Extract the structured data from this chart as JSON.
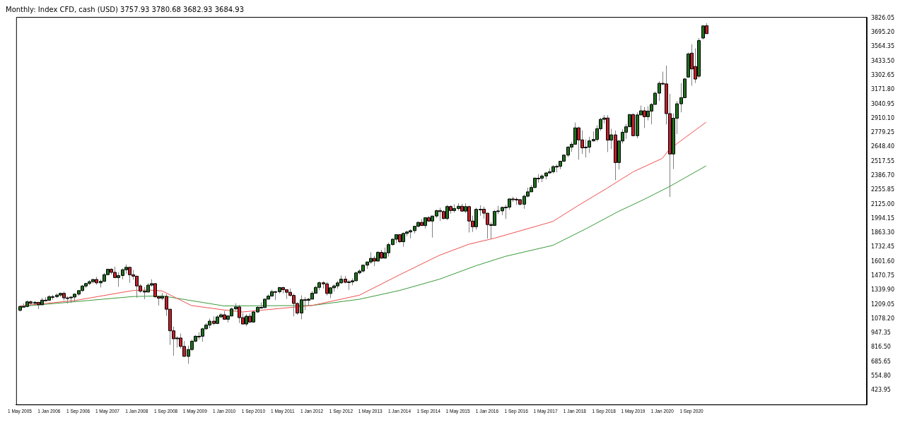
{
  "chart_data": {
    "type": "candlestick",
    "title": "Monthly: Index CFD, cash (USD) 3757.93 3780.68 3682.93 3684.93",
    "x": [
      "2005-05",
      "2005-06",
      "2005-07",
      "2005-08",
      "2005-09",
      "2005-10",
      "2005-11",
      "2005-12",
      "2006-01",
      "2006-02",
      "2006-03",
      "2006-04",
      "2006-05",
      "2006-06",
      "2006-07",
      "2006-08",
      "2006-09",
      "2006-10",
      "2006-11",
      "2006-12",
      "2007-01",
      "2007-02",
      "2007-03",
      "2007-04",
      "2007-05",
      "2007-06",
      "2007-07",
      "2007-08",
      "2007-09",
      "2007-10",
      "2007-11",
      "2007-12",
      "2008-01",
      "2008-02",
      "2008-03",
      "2008-04",
      "2008-05",
      "2008-06",
      "2008-07",
      "2008-08",
      "2008-09",
      "2008-10",
      "2008-11",
      "2008-12",
      "2009-01",
      "2009-02",
      "2009-03",
      "2009-04",
      "2009-05",
      "2009-06",
      "2009-07",
      "2009-08",
      "2009-09",
      "2009-10",
      "2009-11",
      "2009-12",
      "2010-01",
      "2010-02",
      "2010-03",
      "2010-04",
      "2010-05",
      "2010-06",
      "2010-07",
      "2010-08",
      "2010-09",
      "2010-10",
      "2010-11",
      "2010-12",
      "2011-01",
      "2011-02",
      "2011-03",
      "2011-04",
      "2011-05",
      "2011-06",
      "2011-07",
      "2011-08",
      "2011-09",
      "2011-10",
      "2011-11",
      "2011-12",
      "2012-01",
      "2012-02",
      "2012-03",
      "2012-04",
      "2012-05",
      "2012-06",
      "2012-07",
      "2012-08",
      "2012-09",
      "2012-10",
      "2012-11",
      "2012-12",
      "2013-01",
      "2013-02",
      "2013-03",
      "2013-04",
      "2013-05",
      "2013-06",
      "2013-07",
      "2013-08",
      "2013-09",
      "2013-10",
      "2013-11",
      "2013-12",
      "2014-01",
      "2014-02",
      "2014-03",
      "2014-04",
      "2014-05",
      "2014-06",
      "2014-07",
      "2014-08",
      "2014-09",
      "2014-10",
      "2014-11",
      "2014-12",
      "2015-01",
      "2015-02",
      "2015-03",
      "2015-04",
      "2015-05",
      "2015-06",
      "2015-07",
      "2015-08",
      "2015-09",
      "2015-10",
      "2015-11",
      "2015-12",
      "2016-01",
      "2016-02",
      "2016-03",
      "2016-04",
      "2016-05",
      "2016-06",
      "2016-07",
      "2016-08",
      "2016-09",
      "2016-10",
      "2016-11",
      "2016-12",
      "2017-01",
      "2017-02",
      "2017-03",
      "2017-04",
      "2017-05",
      "2017-06",
      "2017-07",
      "2017-08",
      "2017-09",
      "2017-10",
      "2017-11",
      "2017-12",
      "2018-01",
      "2018-02",
      "2018-03",
      "2018-04",
      "2018-05",
      "2018-06",
      "2018-07",
      "2018-08",
      "2018-09",
      "2018-10",
      "2018-11",
      "2018-12",
      "2019-01",
      "2019-02",
      "2019-03",
      "2019-04",
      "2019-05",
      "2019-06",
      "2019-07",
      "2019-08",
      "2019-09",
      "2019-10",
      "2019-11",
      "2019-12",
      "2020-01",
      "2020-02",
      "2020-03",
      "2020-04",
      "2020-05",
      "2020-06",
      "2020-07",
      "2020-08",
      "2020-09",
      "2020-10",
      "2020-11",
      "2020-12",
      "2021-01"
    ],
    "ohlc": [
      [
        1156,
        1199,
        1146,
        1191
      ],
      [
        1191,
        1219,
        1188,
        1191
      ],
      [
        1191,
        1246,
        1183,
        1234
      ],
      [
        1234,
        1245,
        1201,
        1220
      ],
      [
        1220,
        1243,
        1205,
        1229
      ],
      [
        1229,
        1233,
        1168,
        1207
      ],
      [
        1207,
        1270,
        1202,
        1249
      ],
      [
        1249,
        1276,
        1246,
        1248
      ],
      [
        1248,
        1295,
        1245,
        1280
      ],
      [
        1280,
        1297,
        1253,
        1281
      ],
      [
        1281,
        1311,
        1268,
        1295
      ],
      [
        1295,
        1318,
        1280,
        1311
      ],
      [
        1311,
        1326,
        1245,
        1270
      ],
      [
        1270,
        1284,
        1219,
        1270
      ],
      [
        1270,
        1280,
        1224,
        1277
      ],
      [
        1277,
        1306,
        1232,
        1304
      ],
      [
        1304,
        1340,
        1290,
        1336
      ],
      [
        1336,
        1389,
        1327,
        1378
      ],
      [
        1378,
        1407,
        1360,
        1401
      ],
      [
        1401,
        1432,
        1385,
        1418
      ],
      [
        1418,
        1441,
        1403,
        1438
      ],
      [
        1438,
        1462,
        1390,
        1407
      ],
      [
        1407,
        1438,
        1364,
        1421
      ],
      [
        1421,
        1498,
        1416,
        1482
      ],
      [
        1482,
        1535,
        1476,
        1531
      ],
      [
        1531,
        1541,
        1484,
        1503
      ],
      [
        1503,
        1556,
        1455,
        1455
      ],
      [
        1455,
        1503,
        1371,
        1474
      ],
      [
        1474,
        1539,
        1439,
        1527
      ],
      [
        1527,
        1576,
        1490,
        1549
      ],
      [
        1549,
        1553,
        1407,
        1481
      ],
      [
        1481,
        1524,
        1436,
        1468
      ],
      [
        1468,
        1472,
        1271,
        1379
      ],
      [
        1379,
        1396,
        1317,
        1331
      ],
      [
        1331,
        1370,
        1257,
        1323
      ],
      [
        1323,
        1404,
        1323,
        1386
      ],
      [
        1386,
        1440,
        1373,
        1400
      ],
      [
        1400,
        1405,
        1272,
        1280
      ],
      [
        1280,
        1285,
        1200,
        1267
      ],
      [
        1267,
        1314,
        1248,
        1283
      ],
      [
        1283,
        1304,
        1106,
        1166
      ],
      [
        1166,
        1168,
        840,
        969
      ],
      [
        969,
        1007,
        741,
        896
      ],
      [
        896,
        919,
        815,
        903
      ],
      [
        903,
        943,
        805,
        826
      ],
      [
        826,
        876,
        734,
        735
      ],
      [
        735,
        833,
        667,
        798
      ],
      [
        798,
        889,
        783,
        873
      ],
      [
        873,
        930,
        866,
        919
      ],
      [
        919,
        956,
        888,
        919
      ],
      [
        919,
        996,
        869,
        987
      ],
      [
        987,
        1039,
        979,
        1021
      ],
      [
        1021,
        1081,
        992,
        1057
      ],
      [
        1057,
        1101,
        1020,
        1036
      ],
      [
        1036,
        1113,
        1029,
        1096
      ],
      [
        1096,
        1130,
        1086,
        1115
      ],
      [
        1115,
        1150,
        1071,
        1074
      ],
      [
        1074,
        1112,
        1045,
        1104
      ],
      [
        1104,
        1181,
        1101,
        1169
      ],
      [
        1169,
        1220,
        1157,
        1187
      ],
      [
        1187,
        1206,
        1040,
        1089
      ],
      [
        1089,
        1131,
        1028,
        1031
      ],
      [
        1031,
        1120,
        1011,
        1102
      ],
      [
        1102,
        1130,
        1040,
        1049
      ],
      [
        1049,
        1151,
        1042,
        1141
      ],
      [
        1141,
        1196,
        1132,
        1183
      ],
      [
        1183,
        1228,
        1174,
        1181
      ],
      [
        1181,
        1263,
        1180,
        1258
      ],
      [
        1258,
        1302,
        1257,
        1286
      ],
      [
        1286,
        1344,
        1285,
        1327
      ],
      [
        1327,
        1332,
        1249,
        1326
      ],
      [
        1326,
        1370,
        1309,
        1364
      ],
      [
        1364,
        1371,
        1311,
        1345
      ],
      [
        1345,
        1346,
        1259,
        1321
      ],
      [
        1321,
        1356,
        1282,
        1292
      ],
      [
        1292,
        1307,
        1101,
        1219
      ],
      [
        1219,
        1230,
        1114,
        1131
      ],
      [
        1131,
        1293,
        1074,
        1253
      ],
      [
        1253,
        1278,
        1158,
        1247
      ],
      [
        1247,
        1269,
        1202,
        1258
      ],
      [
        1258,
        1333,
        1258,
        1312
      ],
      [
        1312,
        1378,
        1312,
        1366
      ],
      [
        1366,
        1420,
        1340,
        1408
      ],
      [
        1408,
        1422,
        1357,
        1398
      ],
      [
        1398,
        1415,
        1292,
        1310
      ],
      [
        1310,
        1363,
        1267,
        1362
      ],
      [
        1362,
        1392,
        1325,
        1379
      ],
      [
        1379,
        1426,
        1354,
        1407
      ],
      [
        1407,
        1475,
        1397,
        1441
      ],
      [
        1441,
        1470,
        1403,
        1412
      ],
      [
        1412,
        1434,
        1343,
        1416
      ],
      [
        1416,
        1448,
        1385,
        1426
      ],
      [
        1426,
        1510,
        1426,
        1498
      ],
      [
        1498,
        1530,
        1485,
        1515
      ],
      [
        1515,
        1570,
        1502,
        1569
      ],
      [
        1569,
        1600,
        1536,
        1598
      ],
      [
        1598,
        1687,
        1581,
        1631
      ],
      [
        1631,
        1654,
        1560,
        1606
      ],
      [
        1606,
        1698,
        1605,
        1686
      ],
      [
        1686,
        1710,
        1627,
        1633
      ],
      [
        1633,
        1730,
        1633,
        1682
      ],
      [
        1682,
        1775,
        1647,
        1757
      ],
      [
        1757,
        1814,
        1747,
        1806
      ],
      [
        1806,
        1849,
        1768,
        1848
      ],
      [
        1848,
        1851,
        1770,
        1783
      ],
      [
        1783,
        1867,
        1737,
        1859
      ],
      [
        1859,
        1884,
        1834,
        1872
      ],
      [
        1872,
        1898,
        1814,
        1884
      ],
      [
        1884,
        1924,
        1860,
        1924
      ],
      [
        1924,
        1968,
        1915,
        1960
      ],
      [
        1960,
        1992,
        1930,
        1931
      ],
      [
        1931,
        2005,
        1905,
        2003
      ],
      [
        2003,
        2019,
        1964,
        1972
      ],
      [
        1972,
        2018,
        1821,
        2018
      ],
      [
        2018,
        2076,
        2001,
        2068
      ],
      [
        2068,
        2094,
        1972,
        2059
      ],
      [
        2059,
        2072,
        1988,
        1995
      ],
      [
        1995,
        2120,
        1981,
        2105
      ],
      [
        2105,
        2117,
        2040,
        2068
      ],
      [
        2068,
        2126,
        2049,
        2086
      ],
      [
        2086,
        2135,
        2068,
        2107
      ],
      [
        2107,
        2130,
        2056,
        2063
      ],
      [
        2063,
        2133,
        2045,
        2104
      ],
      [
        2104,
        2113,
        1867,
        1972
      ],
      [
        1972,
        2021,
        1872,
        1920
      ],
      [
        1920,
        2094,
        1893,
        2079
      ],
      [
        2079,
        2117,
        2020,
        2080
      ],
      [
        2080,
        2104,
        1993,
        2044
      ],
      [
        2044,
        2044,
        1812,
        1940
      ],
      [
        1940,
        1963,
        1810,
        1932
      ],
      [
        1932,
        2073,
        1932,
        2060
      ],
      [
        2060,
        2111,
        2034,
        2065
      ],
      [
        2065,
        2104,
        2026,
        2097
      ],
      [
        2097,
        2121,
        1991,
        2099
      ],
      [
        2099,
        2178,
        2074,
        2174
      ],
      [
        2174,
        2194,
        2147,
        2171
      ],
      [
        2171,
        2188,
        2120,
        2168
      ],
      [
        2168,
        2169,
        2115,
        2126
      ],
      [
        2126,
        2214,
        2084,
        2199
      ],
      [
        2199,
        2278,
        2188,
        2239
      ],
      [
        2239,
        2301,
        2238,
        2279
      ],
      [
        2279,
        2371,
        2271,
        2364
      ],
      [
        2364,
        2401,
        2322,
        2363
      ],
      [
        2363,
        2399,
        2329,
        2384
      ],
      [
        2384,
        2419,
        2353,
        2412
      ],
      [
        2412,
        2454,
        2405,
        2423
      ],
      [
        2423,
        2484,
        2407,
        2470
      ],
      [
        2470,
        2491,
        2417,
        2472
      ],
      [
        2472,
        2519,
        2446,
        2519
      ],
      [
        2519,
        2582,
        2515,
        2575
      ],
      [
        2575,
        2657,
        2557,
        2648
      ],
      [
        2648,
        2695,
        2605,
        2674
      ],
      [
        2674,
        2873,
        2674,
        2824
      ],
      [
        2824,
        2835,
        2533,
        2714
      ],
      [
        2714,
        2801,
        2585,
        2641
      ],
      [
        2641,
        2718,
        2553,
        2648
      ],
      [
        2648,
        2742,
        2595,
        2705
      ],
      [
        2705,
        2791,
        2698,
        2718
      ],
      [
        2718,
        2848,
        2699,
        2816
      ],
      [
        2816,
        2916,
        2796,
        2902
      ],
      [
        2902,
        2941,
        2864,
        2914
      ],
      [
        2914,
        2940,
        2603,
        2712
      ],
      [
        2712,
        2815,
        2631,
        2760
      ],
      [
        2760,
        2800,
        2346,
        2507
      ],
      [
        2507,
        2708,
        2443,
        2704
      ],
      [
        2704,
        2813,
        2681,
        2784
      ],
      [
        2784,
        2860,
        2723,
        2834
      ],
      [
        2834,
        2949,
        2834,
        2946
      ],
      [
        2946,
        2955,
        2750,
        2752
      ],
      [
        2752,
        2965,
        2728,
        2942
      ],
      [
        2942,
        3028,
        2942,
        2980
      ],
      [
        2980,
        3014,
        2822,
        2926
      ],
      [
        2926,
        3022,
        2892,
        2977
      ],
      [
        2977,
        3050,
        2856,
        3038
      ],
      [
        3038,
        3154,
        3038,
        3141
      ],
      [
        3141,
        3248,
        3070,
        3231
      ],
      [
        3231,
        3338,
        3214,
        3226
      ],
      [
        3226,
        3394,
        2855,
        2954
      ],
      [
        2954,
        3136,
        2192,
        2585
      ],
      [
        2585,
        2955,
        2447,
        2912
      ],
      [
        2912,
        3068,
        2767,
        3044
      ],
      [
        3044,
        3233,
        2966,
        3100
      ],
      [
        3100,
        3280,
        3100,
        3271
      ],
      [
        3288,
        3514,
        3284,
        3500
      ],
      [
        3507,
        3588,
        3209,
        3363
      ],
      [
        3385,
        3550,
        3234,
        3270
      ],
      [
        3296,
        3645,
        3279,
        3622
      ],
      [
        3645,
        3760,
        3633,
        3756
      ],
      [
        3757.93,
        3780.68,
        3682.93,
        3684.93
      ]
    ],
    "colors": [
      "#1e6e1e",
      "#1e6e1e",
      "#1e6e1e",
      "#c0202a",
      "#1e6e1e",
      "#c0202a",
      "#1e6e1e",
      "#c0202a",
      "#1e6e1e",
      "#1e6e1e",
      "#1e6e1e",
      "#1e6e1e",
      "#c0202a",
      "#1e6e1e",
      "#1e6e1e",
      "#1e6e1e",
      "#1e6e1e",
      "#1e6e1e",
      "#1e6e1e",
      "#1e6e1e",
      "#1e6e1e",
      "#c0202a",
      "#1e6e1e",
      "#1e6e1e",
      "#1e6e1e",
      "#c0202a",
      "#c0202a",
      "#1e6e1e",
      "#1e6e1e",
      "#1e6e1e",
      "#c0202a",
      "#c0202a",
      "#c0202a",
      "#c0202a",
      "#c0202a",
      "#1e6e1e",
      "#1e6e1e",
      "#c0202a",
      "#c0202a",
      "#1e6e1e",
      "#c0202a",
      "#c0202a",
      "#c0202a",
      "#1e6e1e",
      "#c0202a",
      "#c0202a",
      "#1e6e1e",
      "#1e6e1e",
      "#1e6e1e",
      "#1e6e1e",
      "#1e6e1e",
      "#1e6e1e",
      "#1e6e1e",
      "#c0202a",
      "#1e6e1e",
      "#1e6e1e",
      "#c0202a",
      "#1e6e1e",
      "#1e6e1e",
      "#1e6e1e",
      "#c0202a",
      "#c0202a",
      "#1e6e1e",
      "#c0202a",
      "#1e6e1e",
      "#1e6e1e",
      "#c0202a",
      "#1e6e1e",
      "#1e6e1e",
      "#1e6e1e",
      "#c0202a",
      "#1e6e1e",
      "#c0202a",
      "#c0202a",
      "#c0202a",
      "#c0202a",
      "#c0202a",
      "#1e6e1e",
      "#c0202a",
      "#1e6e1e",
      "#1e6e1e",
      "#1e6e1e",
      "#1e6e1e",
      "#c0202a",
      "#c0202a",
      "#1e6e1e",
      "#1e6e1e",
      "#1e6e1e",
      "#1e6e1e",
      "#c0202a",
      "#1e6e1e",
      "#1e6e1e",
      "#1e6e1e",
      "#1e6e1e",
      "#1e6e1e",
      "#1e6e1e",
      "#1e6e1e",
      "#c0202a",
      "#1e6e1e",
      "#c0202a",
      "#1e6e1e",
      "#1e6e1e",
      "#1e6e1e",
      "#1e6e1e",
      "#c0202a",
      "#1e6e1e",
      "#1e6e1e",
      "#1e6e1e",
      "#1e6e1e",
      "#1e6e1e",
      "#c0202a",
      "#1e6e1e",
      "#c0202a",
      "#1e6e1e",
      "#1e6e1e",
      "#c0202a",
      "#c0202a",
      "#1e6e1e",
      "#c0202a",
      "#1e6e1e",
      "#1e6e1e",
      "#c0202a",
      "#1e6e1e",
      "#c0202a",
      "#c0202a",
      "#1e6e1e",
      "#1e6e1e",
      "#c0202a",
      "#c0202a",
      "#c0202a",
      "#1e6e1e",
      "#1e6e1e",
      "#1e6e1e",
      "#1e6e1e",
      "#1e6e1e",
      "#c0202a",
      "#c0202a",
      "#c0202a",
      "#1e6e1e",
      "#1e6e1e",
      "#1e6e1e",
      "#1e6e1e",
      "#c0202a",
      "#1e6e1e",
      "#1e6e1e",
      "#1e6e1e",
      "#1e6e1e",
      "#1e6e1e",
      "#1e6e1e",
      "#1e6e1e",
      "#1e6e1e",
      "#1e6e1e",
      "#1e6e1e",
      "#c0202a",
      "#c0202a",
      "#1e6e1e",
      "#1e6e1e",
      "#1e6e1e",
      "#1e6e1e",
      "#1e6e1e",
      "#1e6e1e",
      "#c0202a",
      "#1e6e1e",
      "#c0202a",
      "#1e6e1e",
      "#1e6e1e",
      "#1e6e1e",
      "#1e6e1e",
      "#c0202a",
      "#1e6e1e",
      "#1e6e1e",
      "#c0202a",
      "#1e6e1e",
      "#1e6e1e",
      "#1e6e1e",
      "#1e6e1e",
      "#c0202a",
      "#c0202a",
      "#c0202a",
      "#1e6e1e",
      "#1e6e1e",
      "#1e6e1e",
      "#1e6e1e",
      "#1e6e1e",
      "#c0202a",
      "#c0202a",
      "#1e6e1e",
      "#1e6e1e",
      "#c0202a"
    ],
    "series": [
      {
        "type": "line",
        "color": "#f05050",
        "x": [
          "2005-05",
          "2006-08",
          "2007-12",
          "2008-04",
          "2008-08",
          "2009-04",
          "2010-01",
          "2010-06",
          "2012-01",
          "2013-02",
          "2014-01",
          "2014-12",
          "2015-08",
          "2016-03",
          "2017-07",
          "2018-02",
          "2018-10",
          "2019-05",
          "2020-01",
          "2020-03",
          "2021-01"
        ],
        "values": [
          1196,
          1245,
          1337,
          1342,
          1333,
          1200,
          1159,
          1141,
          1200,
          1294,
          1480,
          1660,
          1760,
          1815,
          1968,
          2115,
          2275,
          2422,
          2545,
          2630,
          2876
        ]
      },
      {
        "type": "line",
        "color": "#3a9a3a",
        "x": [
          "2005-05",
          "2007-12",
          "2008-08",
          "2010-01",
          "2012-01",
          "2013-02",
          "2014-01",
          "2014-12",
          "2015-10",
          "2016-06",
          "2017-07",
          "2018-04",
          "2019-01",
          "2019-08",
          "2020-03",
          "2021-01"
        ],
        "values": [
          1190,
          1282,
          1288,
          1196,
          1200,
          1257,
          1337,
          1441,
          1564,
          1649,
          1750,
          1900,
          2060,
          2170,
          2288,
          2477
        ]
      }
    ],
    "xlim": [
      "2005-04",
      "2024-09"
    ],
    "xticks": [
      {
        "value": "2005-05",
        "label": "1 May 2005"
      },
      {
        "value": "2006-01",
        "label": "1 Jan 2006"
      },
      {
        "value": "2006-09",
        "label": "1 Sep 2006"
      },
      {
        "value": "2007-05",
        "label": "1 May 2007"
      },
      {
        "value": "2008-01",
        "label": "1 Jan 2008"
      },
      {
        "value": "2008-09",
        "label": "1 Sep 2008"
      },
      {
        "value": "2009-05",
        "label": "1 May 2009"
      },
      {
        "value": "2010-01",
        "label": "1 Jan 2010"
      },
      {
        "value": "2010-09",
        "label": "1 Sep 2010"
      },
      {
        "value": "2011-05",
        "label": "1 May 2011"
      },
      {
        "value": "2012-01",
        "label": "1 Jan 2012"
      },
      {
        "value": "2012-09",
        "label": "1 Sep 2012"
      },
      {
        "value": "2013-05",
        "label": "1 May 2013"
      },
      {
        "value": "2014-01",
        "label": "1 Jan 2014"
      },
      {
        "value": "2014-09",
        "label": "1 Sep 2014"
      },
      {
        "value": "2015-05",
        "label": "1 May 2015"
      },
      {
        "value": "2016-01",
        "label": "1 Jan 2016"
      },
      {
        "value": "2016-09",
        "label": "1 Sep 2016"
      },
      {
        "value": "2017-05",
        "label": "1 May 2017"
      },
      {
        "value": "2018-01",
        "label": "1 Jan 2018"
      },
      {
        "value": "2018-09",
        "label": "1 Sep 2018"
      },
      {
        "value": "2019-05",
        "label": "1 May 2019"
      },
      {
        "value": "2020-01",
        "label": "1 Jan 2020"
      },
      {
        "value": "2020-09",
        "label": "1 Sep 2020"
      }
    ],
    "ylim": [
      295,
      3838
    ],
    "yticks": [
      423.95,
      {
        "value": 554.8,
        "label": "554.80"
      },
      685.65,
      {
        "value": 816.5,
        "label": "816.50"
      },
      947.35,
      {
        "value": 1078.2,
        "label": "1078.20"
      },
      1209.05,
      {
        "value": 1339.9,
        "label": "1339.90"
      },
      1470.75,
      {
        "value": 1601.6,
        "label": "1601.60"
      },
      1732.45,
      {
        "value": 1863.3,
        "label": "1863.30"
      },
      1994.15,
      {
        "value": 2125,
        "label": "2125.00"
      },
      2255.85,
      {
        "value": 2386.7,
        "label": "2386.70"
      },
      2517.55,
      {
        "value": 2648.4,
        "label": "2648.40"
      },
      2779.25,
      {
        "value": 2910.1,
        "label": "2910.10"
      },
      3040.95,
      {
        "value": 3171.8,
        "label": "3171.80"
      },
      3302.65,
      {
        "value": 3433.5,
        "label": "3433.50"
      },
      3564.35,
      {
        "value": 3695.2,
        "label": "3695.20"
      },
      3826.05
    ]
  }
}
